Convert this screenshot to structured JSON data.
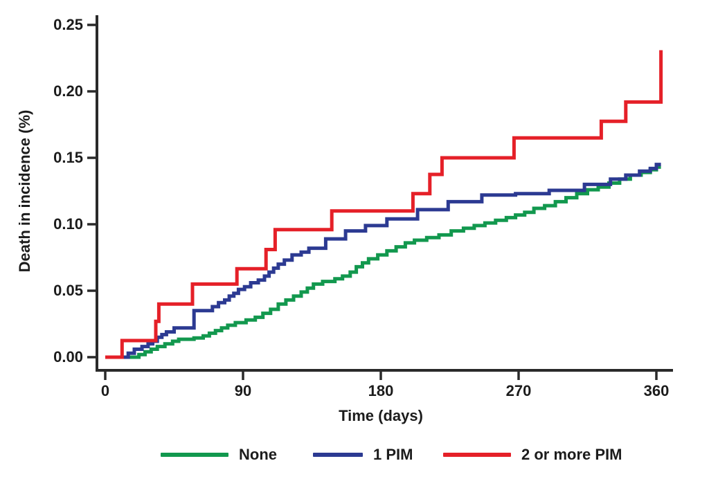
{
  "chart_data": {
    "type": "line",
    "subtype": "step-after cumulative incidence curves",
    "title": "",
    "xlabel": "Time (days)",
    "ylabel": "Death in incidence (%)",
    "xlim": [
      0,
      372
    ],
    "ylim": [
      0,
      0.25
    ],
    "xticks": [
      "0",
      "90",
      "180",
      "270",
      "360"
    ],
    "yticks": [
      "0.00",
      "0.05",
      "0.10",
      "0.15",
      "0.20",
      "0.25"
    ],
    "grid": false,
    "legend_position": "bottom",
    "axis_color": "#2a2a2a",
    "series": [
      {
        "name": "None",
        "color": "#12984e",
        "points": [
          [
            0,
            0
          ],
          [
            20,
            0
          ],
          [
            22,
            0.002
          ],
          [
            26,
            0.004
          ],
          [
            30,
            0.006
          ],
          [
            34,
            0.008
          ],
          [
            39,
            0.01
          ],
          [
            44,
            0.012
          ],
          [
            48,
            0.0135
          ],
          [
            58,
            0.0145
          ],
          [
            64,
            0.016
          ],
          [
            68,
            0.018
          ],
          [
            72,
            0.02
          ],
          [
            76,
            0.022
          ],
          [
            80,
            0.024
          ],
          [
            85,
            0.026
          ],
          [
            92,
            0.028
          ],
          [
            98,
            0.03
          ],
          [
            103,
            0.033
          ],
          [
            108,
            0.036
          ],
          [
            113,
            0.04
          ],
          [
            118,
            0.043
          ],
          [
            123,
            0.046
          ],
          [
            128,
            0.049
          ],
          [
            132,
            0.052
          ],
          [
            136,
            0.055
          ],
          [
            142,
            0.057
          ],
          [
            150,
            0.059
          ],
          [
            155,
            0.061
          ],
          [
            160,
            0.064
          ],
          [
            164,
            0.068
          ],
          [
            168,
            0.071
          ],
          [
            172,
            0.074
          ],
          [
            178,
            0.077
          ],
          [
            184,
            0.08
          ],
          [
            190,
            0.083
          ],
          [
            196,
            0.086
          ],
          [
            202,
            0.088
          ],
          [
            210,
            0.09
          ],
          [
            218,
            0.092
          ],
          [
            226,
            0.095
          ],
          [
            234,
            0.097
          ],
          [
            241,
            0.099
          ],
          [
            248,
            0.101
          ],
          [
            255,
            0.103
          ],
          [
            262,
            0.105
          ],
          [
            268,
            0.107
          ],
          [
            274,
            0.109
          ],
          [
            280,
            0.112
          ],
          [
            287,
            0.114
          ],
          [
            294,
            0.117
          ],
          [
            301,
            0.12
          ],
          [
            308,
            0.123
          ],
          [
            315,
            0.126
          ],
          [
            322,
            0.128
          ],
          [
            329,
            0.131
          ],
          [
            336,
            0.134
          ],
          [
            343,
            0.137
          ],
          [
            350,
            0.139
          ],
          [
            356,
            0.141
          ],
          [
            360,
            0.143
          ],
          [
            363,
            0.143
          ]
        ]
      },
      {
        "name": "1 PIM",
        "color": "#2c3a92",
        "points": [
          [
            0,
            0
          ],
          [
            14,
            0
          ],
          [
            15,
            0.003
          ],
          [
            19,
            0.006
          ],
          [
            24,
            0.008
          ],
          [
            28,
            0.01
          ],
          [
            31,
            0.012
          ],
          [
            34,
            0.015
          ],
          [
            37,
            0.017
          ],
          [
            40,
            0.019
          ],
          [
            45,
            0.022
          ],
          [
            58,
            0.035
          ],
          [
            70,
            0.038
          ],
          [
            74,
            0.041
          ],
          [
            78,
            0.043
          ],
          [
            81,
            0.046
          ],
          [
            84,
            0.048
          ],
          [
            87,
            0.051
          ],
          [
            91,
            0.053
          ],
          [
            95,
            0.056
          ],
          [
            100,
            0.058
          ],
          [
            104,
            0.061
          ],
          [
            107,
            0.064
          ],
          [
            110,
            0.067
          ],
          [
            113,
            0.07
          ],
          [
            117,
            0.073
          ],
          [
            122,
            0.077
          ],
          [
            128,
            0.079
          ],
          [
            133,
            0.082
          ],
          [
            144,
            0.089
          ],
          [
            157,
            0.095
          ],
          [
            170,
            0.099
          ],
          [
            184,
            0.104
          ],
          [
            204,
            0.111
          ],
          [
            224,
            0.117
          ],
          [
            246,
            0.122
          ],
          [
            268,
            0.123
          ],
          [
            290,
            0.1255
          ],
          [
            313,
            0.13
          ],
          [
            330,
            0.134
          ],
          [
            340,
            0.137
          ],
          [
            349,
            0.14
          ],
          [
            356,
            0.142
          ],
          [
            360,
            0.145
          ],
          [
            363,
            0.145
          ]
        ]
      },
      {
        "name": "2 or more PIM",
        "color": "#e52028",
        "points": [
          [
            0,
            0
          ],
          [
            10,
            0
          ],
          [
            11,
            0.0125
          ],
          [
            33,
            0.027
          ],
          [
            35,
            0.04
          ],
          [
            57,
            0.055
          ],
          [
            86,
            0.0665
          ],
          [
            105,
            0.081
          ],
          [
            111,
            0.096
          ],
          [
            148,
            0.11
          ],
          [
            201,
            0.123
          ],
          [
            212,
            0.1375
          ],
          [
            220,
            0.15
          ],
          [
            267,
            0.165
          ],
          [
            324,
            0.1775
          ],
          [
            340,
            0.192
          ],
          [
            363,
            0.231
          ]
        ]
      }
    ]
  }
}
